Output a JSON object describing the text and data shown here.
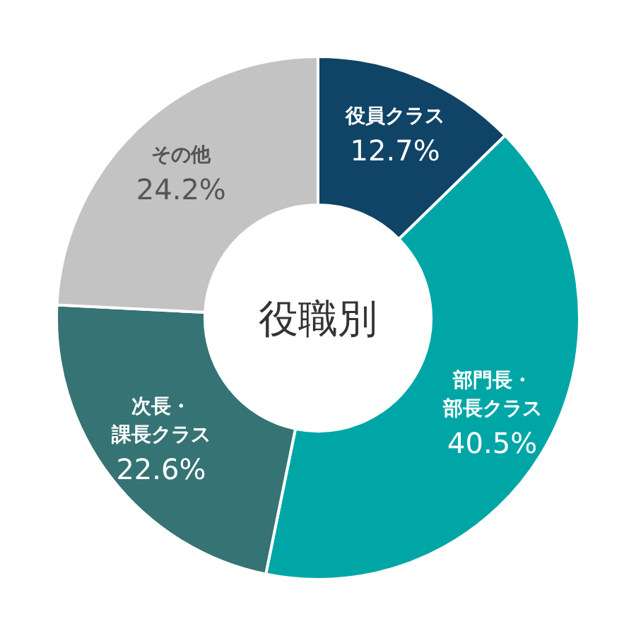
{
  "chart_data": {
    "type": "donut",
    "title": "役職別",
    "categories": [
      "役員クラス",
      "部門長・部長クラス",
      "次長・課長クラス",
      "その他"
    ],
    "values": [
      12.7,
      40.5,
      22.6,
      24.2
    ],
    "value_labels": [
      "12.7%",
      "40.5%",
      "22.6%",
      "24.2%"
    ],
    "colors": [
      "#0f4466",
      "#00a6a6",
      "#357374",
      "#c3c3c3"
    ]
  }
}
